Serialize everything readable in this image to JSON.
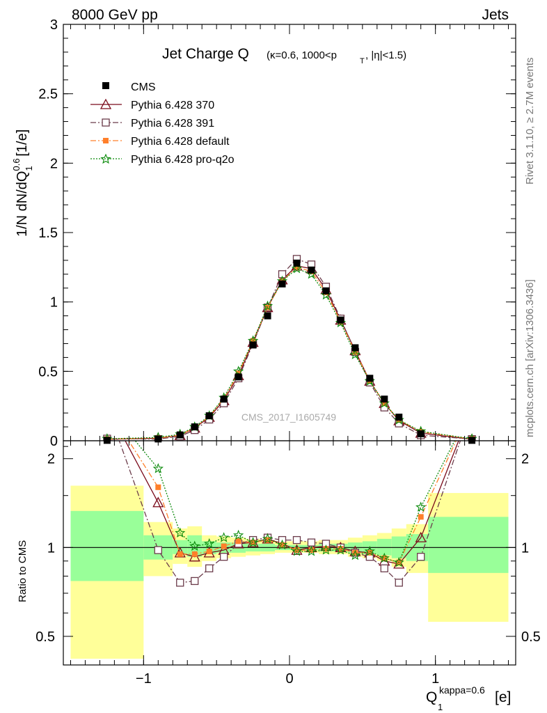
{
  "header": {
    "energy": "8000 GeV pp",
    "process": "Jets",
    "title_main": "Jet Charge Q",
    "title_sub": "(κ=0.6, 1000<p",
    "title_sub_T": "T",
    "title_sub_end": ", |η|<1.5)",
    "watermark": "CMS_2017_I1605749",
    "rivet": "Rivet 3.1.10, ≥ 2.7M events",
    "mcplots": "mcplots.cern.ch [arXiv:1306.3436]"
  },
  "axes": {
    "ylabel_main": "1/N dN/dQ",
    "ylabel_main_sup": "0.6",
    "ylabel_main_sub": "1",
    "ylabel_main_unit": " [1/e]",
    "ylabel_ratio": "Ratio to CMS",
    "xlabel": "Q",
    "xlabel_sup": "kappa=0.6",
    "xlabel_sub": "1",
    "xlabel_unit": " [e]",
    "main_ticks": [
      "0",
      "0.5",
      "1",
      "1.5",
      "2",
      "2.5",
      "3"
    ],
    "ratio_ticks": [
      "0.5",
      "1",
      "2"
    ],
    "x_ticks": [
      "−1",
      "0",
      "1"
    ]
  },
  "legend": {
    "cms": "CMS",
    "p370": "Pythia 6.428 370",
    "p391": "Pythia 6.428 391",
    "pdef": "Pythia 6.428 default",
    "pq2o": "Pythia 6.428 pro-q2o"
  },
  "chart_data": {
    "type": "line",
    "title": "Jet Charge Q (κ=0.6, 1000<pT, |η|<1.5)",
    "xlim": [
      -1.55,
      1.55
    ],
    "ylim_main": [
      0,
      3
    ],
    "ylim_ratio": [
      0.4,
      2.3
    ],
    "ratio_log": true,
    "x": [
      -1.25,
      -0.9,
      -0.75,
      -0.65,
      -0.55,
      -0.45,
      -0.35,
      -0.25,
      -0.15,
      -0.05,
      0.05,
      0.15,
      0.25,
      0.35,
      0.45,
      0.55,
      0.65,
      0.75,
      0.9,
      1.25
    ],
    "cms": [
      0.003,
      0.013,
      0.042,
      0.1,
      0.18,
      0.3,
      0.46,
      0.69,
      0.9,
      1.13,
      1.28,
      1.23,
      1.08,
      0.87,
      0.67,
      0.45,
      0.3,
      0.17,
      0.05,
      0.003
    ],
    "series": [
      {
        "name": "Pythia 6.428 370",
        "color": "#7a0a1a",
        "values": [
          0.01,
          0.018,
          0.039,
          0.092,
          0.17,
          0.29,
          0.47,
          0.71,
          0.96,
          1.16,
          1.26,
          1.24,
          1.09,
          0.87,
          0.65,
          0.43,
          0.27,
          0.145,
          0.055,
          0.01
        ]
      },
      {
        "name": "Pythia 6.428 391",
        "color": "#6b3b4a",
        "values": [
          0.015,
          0.012,
          0.032,
          0.077,
          0.153,
          0.27,
          0.45,
          0.7,
          0.96,
          1.2,
          1.31,
          1.27,
          1.11,
          0.88,
          0.64,
          0.42,
          0.24,
          0.125,
          0.04,
          0.012
        ]
      },
      {
        "name": "Pythia 6.428 default",
        "color": "#ff7f2a",
        "values": [
          0.012,
          0.02,
          0.04,
          0.095,
          0.175,
          0.305,
          0.485,
          0.72,
          0.96,
          1.15,
          1.25,
          1.22,
          1.07,
          0.86,
          0.64,
          0.43,
          0.27,
          0.15,
          0.064,
          0.013
        ]
      },
      {
        "name": "Pythia 6.428 pro-q2o",
        "color": "#0a8a0a",
        "values": [
          0.014,
          0.024,
          0.047,
          0.1,
          0.18,
          0.31,
          0.5,
          0.72,
          0.97,
          1.15,
          1.24,
          1.2,
          1.05,
          0.85,
          0.62,
          0.43,
          0.27,
          0.15,
          0.068,
          0.014
        ]
      }
    ],
    "ratio_series": [
      [
        3.0,
        1.42,
        0.96,
        0.93,
        0.96,
        0.98,
        1.03,
        1.04,
        1.07,
        1.03,
        0.98,
        1.0,
        1.01,
        1.0,
        0.97,
        0.96,
        0.9,
        0.88,
        1.08,
        3.0
      ],
      [
        3.0,
        0.98,
        0.76,
        0.77,
        0.85,
        0.93,
        1.03,
        1.06,
        1.08,
        1.06,
        1.06,
        1.04,
        1.03,
        1.0,
        0.96,
        0.93,
        0.85,
        0.76,
        0.93,
        3.0
      ],
      [
        3.0,
        1.6,
        0.95,
        0.95,
        0.97,
        1.01,
        1.05,
        1.04,
        1.06,
        1.02,
        0.98,
        0.98,
        0.99,
        0.99,
        0.96,
        0.96,
        0.92,
        0.89,
        1.27,
        3.0
      ],
      [
        3.0,
        1.85,
        1.12,
        1.01,
        1.03,
        1.08,
        1.1,
        1.04,
        1.07,
        1.02,
        0.97,
        0.97,
        0.98,
        0.98,
        0.94,
        0.97,
        0.92,
        0.89,
        1.37,
        3.0
      ]
    ],
    "bands": [
      {
        "x0": -1.5,
        "x1": -1.0,
        "y_lo": 0.42,
        "y_hi": 1.62,
        "g_lo": 0.77,
        "g_hi": 1.33
      },
      {
        "x0": -1.0,
        "x1": -0.8,
        "y_lo": 0.8,
        "y_hi": 1.22,
        "g_lo": 0.91,
        "g_hi": 1.1
      },
      {
        "x0": -0.8,
        "x1": -0.7,
        "y_lo": 0.88,
        "y_hi": 1.16,
        "g_lo": 0.95,
        "g_hi": 1.06
      },
      {
        "x0": -0.7,
        "x1": -0.6,
        "y_lo": 0.86,
        "y_hi": 1.18,
        "g_lo": 0.93,
        "g_hi": 1.1
      },
      {
        "x0": -0.6,
        "x1": -0.5,
        "y_lo": 0.9,
        "y_hi": 1.1,
        "g_lo": 0.95,
        "g_hi": 1.05
      },
      {
        "x0": -0.5,
        "x1": -0.4,
        "y_lo": 0.92,
        "y_hi": 1.09,
        "g_lo": 0.96,
        "g_hi": 1.04
      },
      {
        "x0": -0.4,
        "x1": -0.3,
        "y_lo": 0.93,
        "y_hi": 1.08,
        "g_lo": 0.96,
        "g_hi": 1.04
      },
      {
        "x0": -0.3,
        "x1": -0.2,
        "y_lo": 0.94,
        "y_hi": 1.07,
        "g_lo": 0.97,
        "g_hi": 1.03
      },
      {
        "x0": -0.2,
        "x1": -0.1,
        "y_lo": 0.95,
        "y_hi": 1.06,
        "g_lo": 0.97,
        "g_hi": 1.03
      },
      {
        "x0": -0.1,
        "x1": 0.0,
        "y_lo": 0.96,
        "y_hi": 1.05,
        "g_lo": 0.98,
        "g_hi": 1.02
      },
      {
        "x0": 0.0,
        "x1": 0.1,
        "y_lo": 0.96,
        "y_hi": 1.05,
        "g_lo": 0.98,
        "g_hi": 1.02
      },
      {
        "x0": 0.1,
        "x1": 0.2,
        "y_lo": 0.96,
        "y_hi": 1.05,
        "g_lo": 0.98,
        "g_hi": 1.02
      },
      {
        "x0": 0.2,
        "x1": 0.3,
        "y_lo": 0.95,
        "y_hi": 1.06,
        "g_lo": 0.97,
        "g_hi": 1.03
      },
      {
        "x0": 0.3,
        "x1": 0.4,
        "y_lo": 0.95,
        "y_hi": 1.06,
        "g_lo": 0.97,
        "g_hi": 1.03
      },
      {
        "x0": 0.4,
        "x1": 0.5,
        "y_lo": 0.93,
        "y_hi": 1.08,
        "g_lo": 0.96,
        "g_hi": 1.04
      },
      {
        "x0": 0.5,
        "x1": 0.6,
        "y_lo": 0.92,
        "y_hi": 1.1,
        "g_lo": 0.95,
        "g_hi": 1.05
      },
      {
        "x0": 0.6,
        "x1": 0.7,
        "y_lo": 0.9,
        "y_hi": 1.12,
        "g_lo": 0.94,
        "g_hi": 1.07
      },
      {
        "x0": 0.7,
        "x1": 0.8,
        "y_lo": 0.86,
        "y_hi": 1.16,
        "g_lo": 0.92,
        "g_hi": 1.09
      },
      {
        "x0": 0.8,
        "x1": 0.95,
        "y_lo": 0.82,
        "y_hi": 1.2,
        "g_lo": 0.9,
        "g_hi": 1.11
      },
      {
        "x0": 0.95,
        "x1": 1.5,
        "y_lo": 0.56,
        "y_hi": 1.53,
        "g_lo": 0.82,
        "g_hi": 1.27
      }
    ]
  }
}
